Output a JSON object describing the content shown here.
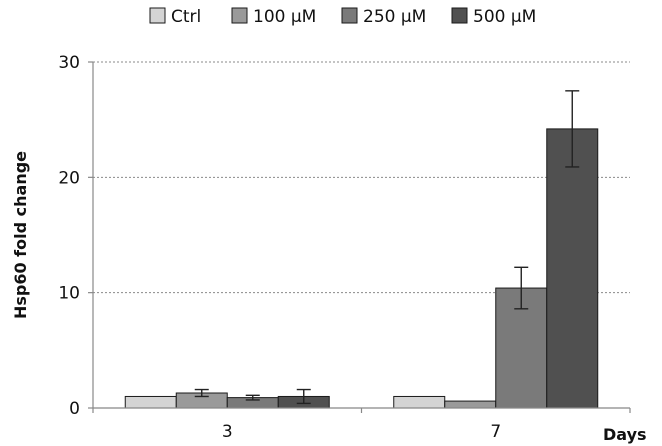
{
  "chart_data": {
    "type": "bar",
    "categories": [
      "3",
      "7"
    ],
    "series": [
      {
        "name": "Ctrl",
        "values": [
          1.0,
          1.0
        ],
        "errors": [
          0,
          0
        ],
        "color": "#d4d4d4"
      },
      {
        "name": "100 μM",
        "values": [
          1.3,
          0.6
        ],
        "errors": [
          0.3,
          0
        ],
        "color": "#9a9a9a"
      },
      {
        "name": "250 μM",
        "values": [
          0.9,
          10.4
        ],
        "errors": [
          0.2,
          1.8
        ],
        "color": "#7a7a7a"
      },
      {
        "name": "500 μM",
        "values": [
          1.0,
          24.2
        ],
        "errors": [
          0.6,
          3.3
        ],
        "color": "#505050"
      }
    ],
    "ylabel": "Hsp60 fold change",
    "xlabel": "Days",
    "ylim": [
      0,
      30
    ],
    "yticks": [
      0,
      10,
      20,
      30
    ],
    "grid": true,
    "legend_position": "top"
  }
}
